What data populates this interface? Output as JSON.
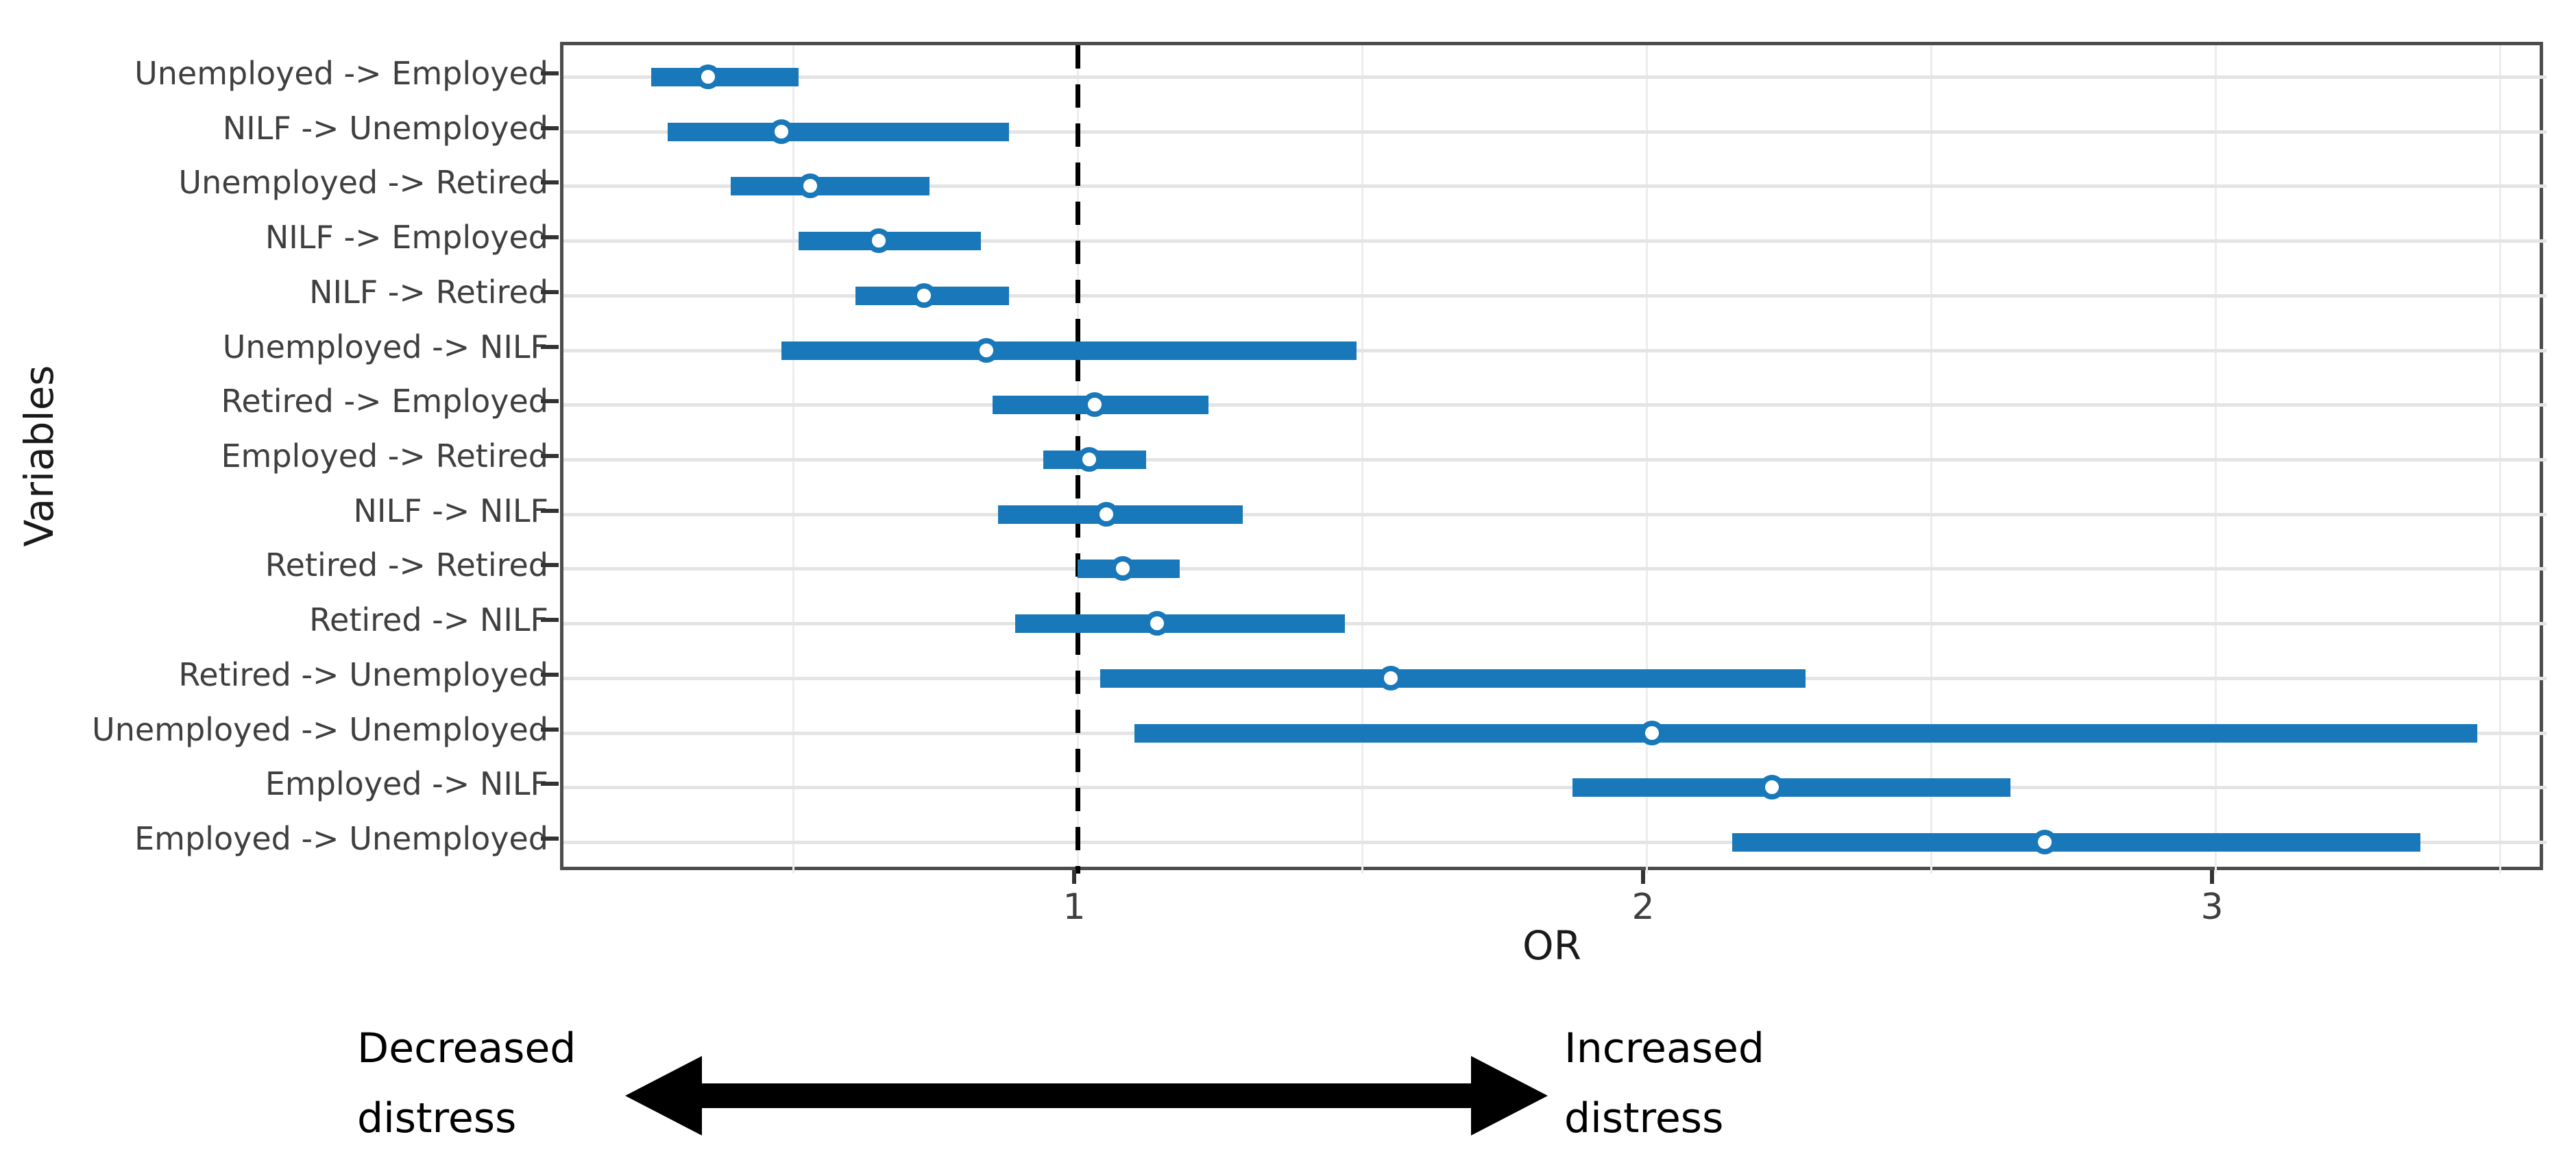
{
  "chart_data": {
    "type": "scatter",
    "subtype": "forest-plot-odds-ratios",
    "orientation": "horizontal",
    "xlabel": "OR",
    "ylabel": "Variables",
    "x_ticks": [
      1,
      2,
      3
    ],
    "x_gridline_step": 0.5,
    "x_gridline_min": 0.5,
    "x_gridline_max": 3.5,
    "xlim": [
      0.1,
      3.58
    ],
    "grid": "on",
    "legend": "none",
    "reference_line": {
      "x": 1.0,
      "style": "dashed",
      "color": "#000000"
    },
    "rows": [
      {
        "label": "Unemployed -> Employed",
        "or": 0.35,
        "ci_low": 0.25,
        "ci_high": 0.51
      },
      {
        "label": "NILF -> Unemployed",
        "or": 0.48,
        "ci_low": 0.28,
        "ci_high": 0.88
      },
      {
        "label": "Unemployed -> Retired",
        "or": 0.53,
        "ci_low": 0.39,
        "ci_high": 0.74
      },
      {
        "label": "NILF -> Employed",
        "or": 0.65,
        "ci_low": 0.51,
        "ci_high": 0.83
      },
      {
        "label": "NILF -> Retired",
        "or": 0.73,
        "ci_low": 0.61,
        "ci_high": 0.88
      },
      {
        "label": "Unemployed -> NILF",
        "or": 0.84,
        "ci_low": 0.48,
        "ci_high": 1.49
      },
      {
        "label": "Retired -> Employed",
        "or": 1.03,
        "ci_low": 0.85,
        "ci_high": 1.23
      },
      {
        "label": "Employed -> Retired",
        "or": 1.02,
        "ci_low": 0.94,
        "ci_high": 1.12
      },
      {
        "label": "NILF -> NILF",
        "or": 1.05,
        "ci_low": 0.86,
        "ci_high": 1.29
      },
      {
        "label": "Retired -> Retired",
        "or": 1.08,
        "ci_low": 1.0,
        "ci_high": 1.18
      },
      {
        "label": "Retired -> NILF",
        "or": 1.14,
        "ci_low": 0.89,
        "ci_high": 1.47
      },
      {
        "label": "Retired -> Unemployed",
        "or": 1.55,
        "ci_low": 1.04,
        "ci_high": 2.28
      },
      {
        "label": "Unemployed -> Unemployed",
        "or": 2.01,
        "ci_low": 1.1,
        "ci_high": 3.46
      },
      {
        "label": "Employed -> NILF",
        "or": 2.22,
        "ci_low": 1.87,
        "ci_high": 2.64
      },
      {
        "label": "Employed -> Unemployed",
        "or": 2.7,
        "ci_low": 2.15,
        "ci_high": 3.36
      }
    ],
    "colors": {
      "bar": "#1878b9",
      "marker_face": "#ffffff",
      "marker_edge": "#1878b9",
      "panel_border": "#4d4d4d",
      "gridline": "#e4e4e4",
      "reference_line": "#000000"
    }
  },
  "annotation": {
    "left": {
      "line1": "Decreased",
      "line2": "distress"
    },
    "right": {
      "line1": "Increased",
      "line2": "distress"
    },
    "arrow": "double-headed-horizontal"
  }
}
